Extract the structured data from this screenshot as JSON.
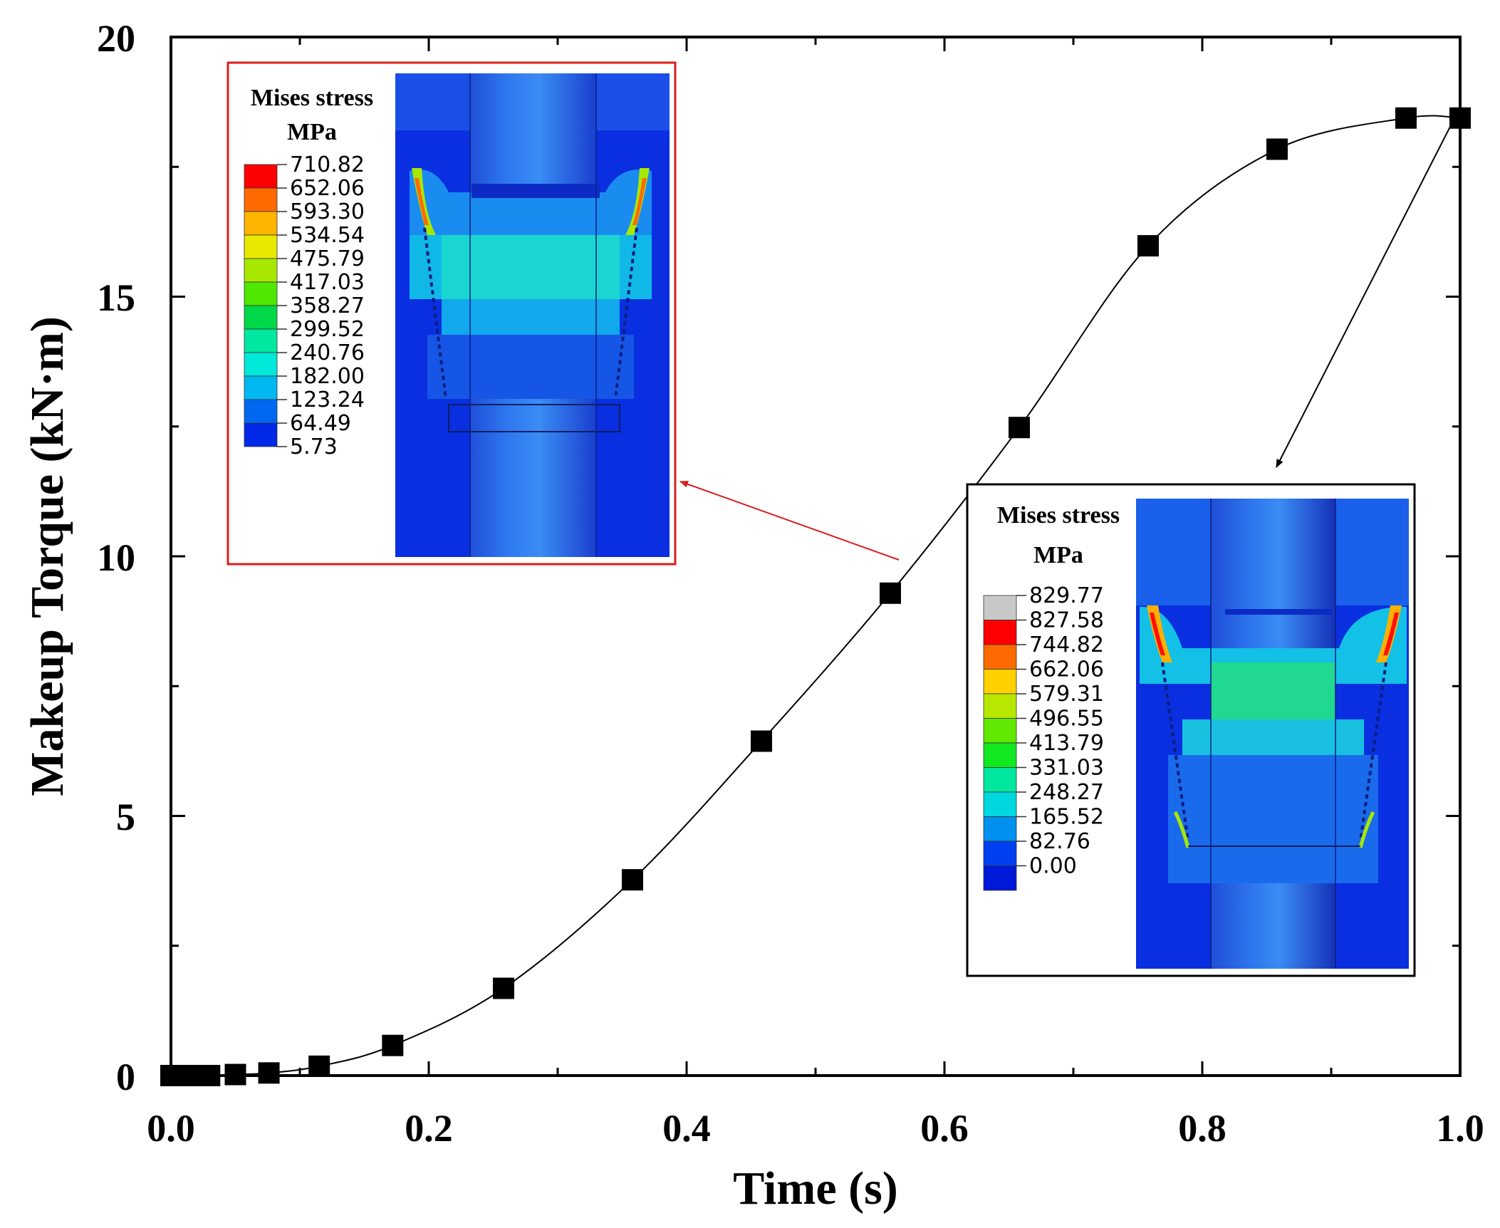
{
  "chart_data": {
    "type": "line",
    "xlabel": "Time (s)",
    "ylabel": "Makeup Torque (kN·m)",
    "xlim": [
      0,
      1.0
    ],
    "ylim": [
      0,
      20
    ],
    "x_ticks": [
      "0.0",
      "0.2",
      "0.4",
      "0.6",
      "0.8",
      "1.0"
    ],
    "y_ticks": [
      "0",
      "5",
      "10",
      "15",
      "20"
    ],
    "grid": false,
    "series": [
      {
        "marker": "square",
        "line": "smooth",
        "color": "#000000",
        "points": [
          {
            "x": 0.0,
            "y": 0.0
          },
          {
            "x": 0.01,
            "y": 0.0
          },
          {
            "x": 0.02,
            "y": 0.0
          },
          {
            "x": 0.03,
            "y": 0.0
          },
          {
            "x": 0.05,
            "y": 0.02
          },
          {
            "x": 0.076,
            "y": 0.05
          },
          {
            "x": 0.115,
            "y": 0.18
          },
          {
            "x": 0.172,
            "y": 0.58
          },
          {
            "x": 0.258,
            "y": 1.68
          },
          {
            "x": 0.358,
            "y": 3.77
          },
          {
            "x": 0.458,
            "y": 6.44
          },
          {
            "x": 0.558,
            "y": 9.29
          },
          {
            "x": 0.658,
            "y": 12.48
          },
          {
            "x": 0.758,
            "y": 15.98
          },
          {
            "x": 0.858,
            "y": 17.84
          },
          {
            "x": 0.958,
            "y": 18.44
          },
          {
            "x": 1.0,
            "y": 18.44
          }
        ]
      }
    ],
    "insets": [
      {
        "title": "Mises stress",
        "unit": "MPa",
        "border_color": "#d92020",
        "arrow_to_point": {
          "x": 0.568,
          "y": 9.8
        },
        "legend_values": [
          "710.82",
          "652.06",
          "593.30",
          "534.54",
          "475.79",
          "417.03",
          "358.27",
          "299.52",
          "240.76",
          "182.00",
          "123.24",
          "64.49",
          "5.73"
        ],
        "legend_colors": [
          "#ff0000",
          "#ff6a00",
          "#ffb400",
          "#e8e800",
          "#a8e800",
          "#4ee800",
          "#00d84a",
          "#00e8a0",
          "#00e8d8",
          "#00b8f0",
          "#0068f0",
          "#0028e8"
        ]
      },
      {
        "title": "Mises stress",
        "unit": "MPa",
        "border_color": "#000000",
        "arrow_to_point": {
          "x": 0.994,
          "y": 18.44
        },
        "legend_values": [
          "829.77",
          "827.58",
          "744.82",
          "662.06",
          "579.31",
          "496.55",
          "413.79",
          "331.03",
          "248.27",
          "165.52",
          "82.76",
          "0.00"
        ],
        "legend_colors": [
          "#c8c8c8",
          "#ff0000",
          "#ff6a00",
          "#ffd000",
          "#b8e800",
          "#60e800",
          "#10e820",
          "#00e8a0",
          "#00d8e0",
          "#0090f0",
          "#0040f0",
          "#0018d8"
        ]
      }
    ]
  }
}
